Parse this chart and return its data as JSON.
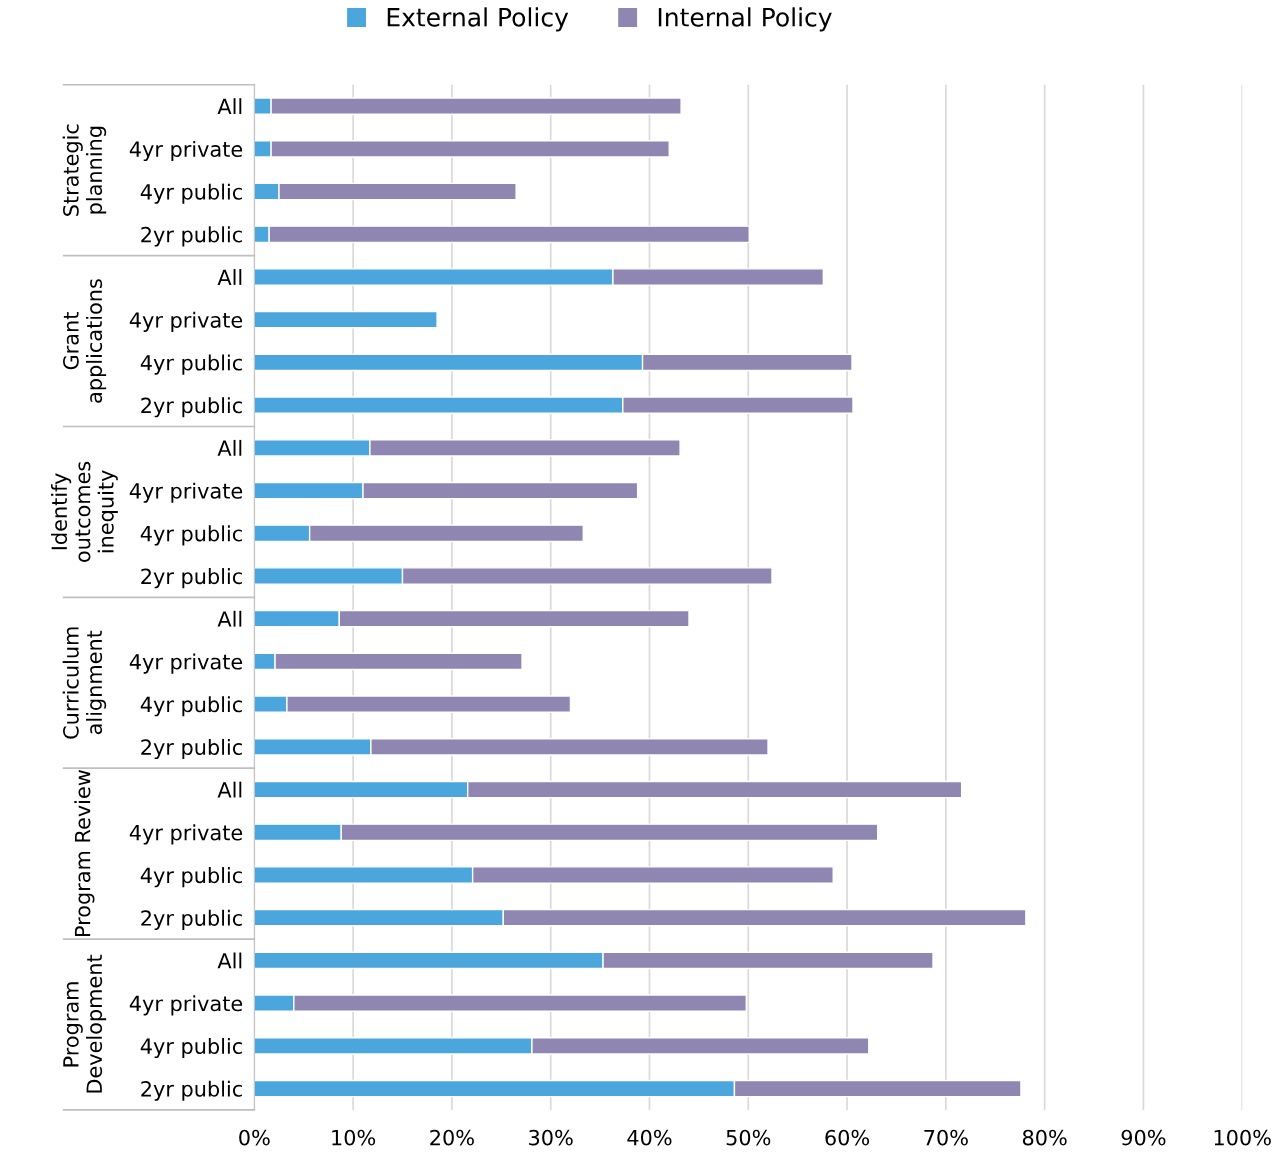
{
  "chart_data": {
    "type": "bar",
    "orientation": "horizontal",
    "stacked": true,
    "categories": [
      "All",
      "4yr private",
      "4yr public",
      "2yr public",
      "All",
      "4yr private",
      "4yr public",
      "2yr public",
      "All",
      "4yr private",
      "4yr public",
      "2yr public",
      "All",
      "4yr private",
      "4yr public",
      "2yr public",
      "All",
      "4yr private",
      "4yr public",
      "2yr public",
      "All",
      "4yr private",
      "4yr public",
      "2yr public"
    ],
    "annotations": [
      "Strategic\nplanning",
      "Grant\napplications",
      "Identify\noutcomes\ninequity",
      "Curriculum\nalignment",
      "Program Review",
      "Program\nDevelopment"
    ],
    "series": [
      {
        "name": "External Policy",
        "color": "#4aa6dc",
        "values": [
          1.7,
          1.7,
          2.5,
          1.5,
          36.3,
          18.5,
          39.3,
          37.3,
          11.7,
          11.0,
          5.6,
          15.0,
          8.6,
          2.1,
          3.3,
          11.8,
          21.6,
          8.8,
          22.1,
          25.2,
          35.3,
          4.0,
          28.1,
          48.6
        ]
      },
      {
        "name": "Internal Policy",
        "color": "#8f87b1",
        "values": [
          41.5,
          40.3,
          24.0,
          48.6,
          21.3,
          null,
          21.2,
          23.3,
          31.4,
          27.8,
          27.7,
          37.4,
          35.4,
          25.0,
          28.7,
          40.2,
          50.0,
          54.3,
          36.5,
          52.9,
          33.4,
          45.8,
          34.1,
          29.0
        ]
      }
    ],
    "xlim": [
      0,
      100
    ],
    "xticks": [
      {
        "value": 0,
        "label": "0%"
      },
      {
        "value": 10,
        "label": "10%"
      },
      {
        "value": 20,
        "label": "20%"
      },
      {
        "value": 30,
        "label": "30%"
      },
      {
        "value": 40,
        "label": "40%"
      },
      {
        "value": 50,
        "label": "50%"
      },
      {
        "value": 60,
        "label": "60%"
      },
      {
        "value": 70,
        "label": "70%"
      },
      {
        "value": 80,
        "label": "80%"
      },
      {
        "value": 90,
        "label": "90%"
      },
      {
        "value": 100,
        "label": "100%"
      }
    ],
    "grid": "x",
    "legend": "top"
  }
}
